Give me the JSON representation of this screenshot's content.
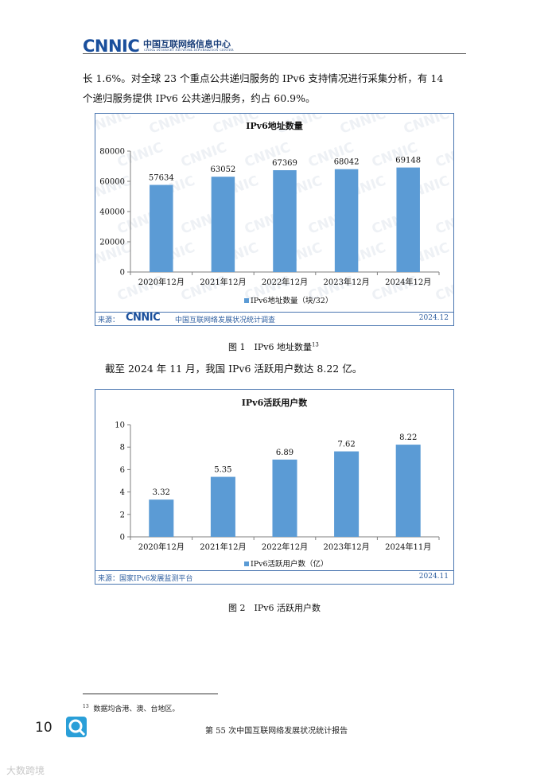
{
  "header": {
    "logo_text": "CNNIC",
    "org_name_cn": "中国互联网络信息中心",
    "org_name_en": "CHINA INTERNET NETWORK INFORMATION CENTER"
  },
  "body": {
    "para1_line1": "长 1.6%。对全球 23 个重点公共递归服务的 IPv6 支持情况进行采集分析，有 14",
    "para1_line2": "个递归服务提供 IPv6 公共递归服务，约占 60.9%。",
    "para2": "截至 2024 年 11 月，我国 IPv6 活跃用户数达 8.22 亿。"
  },
  "figure1": {
    "caption_text": "图 1　IPv6 地址数量",
    "caption_sup": "13",
    "source_label": "来源：",
    "source_logo": "CNNIC",
    "source_text": "中国互联网络发展状况统计调查",
    "source_date": "2024.12",
    "watermark_text": "CNNIC"
  },
  "figure2": {
    "caption_text": "图 2　IPv6 活跃用户数",
    "source_text": "来源：国家IPv6发展监测平台",
    "source_date": "2024.11"
  },
  "chart_data": [
    {
      "type": "bar",
      "title": "IPv6地址数量",
      "categories": [
        "2020年12月",
        "2021年12月",
        "2022年12月",
        "2023年12月",
        "2024年12月"
      ],
      "series": [
        {
          "name": "IPv6地址数量（块/32）",
          "values": [
            57634,
            63052,
            67369,
            68042,
            69148
          ]
        }
      ],
      "ylim": [
        0,
        80000
      ],
      "yticks": [
        0,
        20000,
        40000,
        60000,
        80000
      ],
      "grid": false,
      "legend": "bottom",
      "bar_color": "#5b9bd5"
    },
    {
      "type": "bar",
      "title": "IPv6活跃用户数",
      "categories": [
        "2020年12月",
        "2021年12月",
        "2022年12月",
        "2023年12月",
        "2024年11月"
      ],
      "series": [
        {
          "name": "IPv6活跃用户数（亿）",
          "values": [
            3.32,
            5.35,
            6.89,
            7.62,
            8.22
          ]
        }
      ],
      "ylim": [
        0,
        10
      ],
      "yticks": [
        0,
        2,
        4,
        6,
        8,
        10
      ],
      "grid": false,
      "legend": "bottom",
      "bar_color": "#5b9bd5"
    }
  ],
  "footnote": {
    "sup": "13",
    "text": "数据均含港、澳、台地区。"
  },
  "footer": {
    "page_number": "10",
    "report_title": "第 55 次中国互联网络发展状况统计报告"
  },
  "overlay_watermark": "大数跨境"
}
